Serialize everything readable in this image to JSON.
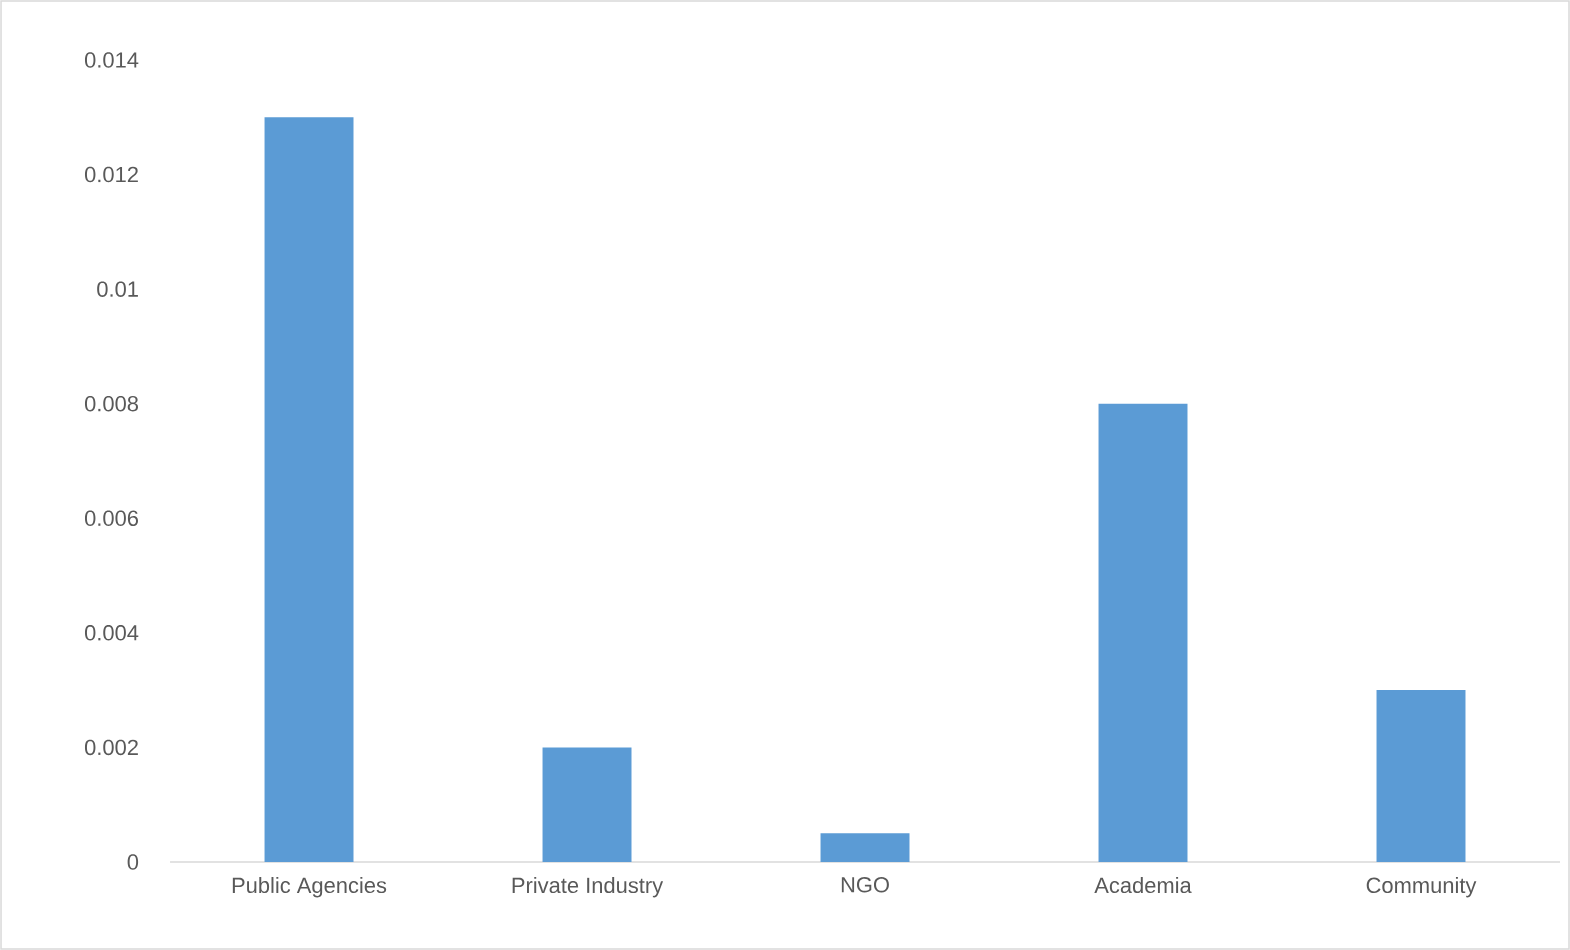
{
  "chart_data": {
    "type": "bar",
    "categories": [
      "Public Agencies",
      "Private Industry",
      "NGO",
      "Academia",
      "Community"
    ],
    "values": [
      0.013,
      0.002,
      0.0005,
      0.008,
      0.003
    ],
    "color": "#5b9bd5",
    "ylim": [
      0,
      0.014
    ],
    "yticks": [
      0,
      0.002,
      0.004,
      0.006,
      0.008,
      0.01,
      0.012,
      0.014
    ],
    "grid": false
  }
}
